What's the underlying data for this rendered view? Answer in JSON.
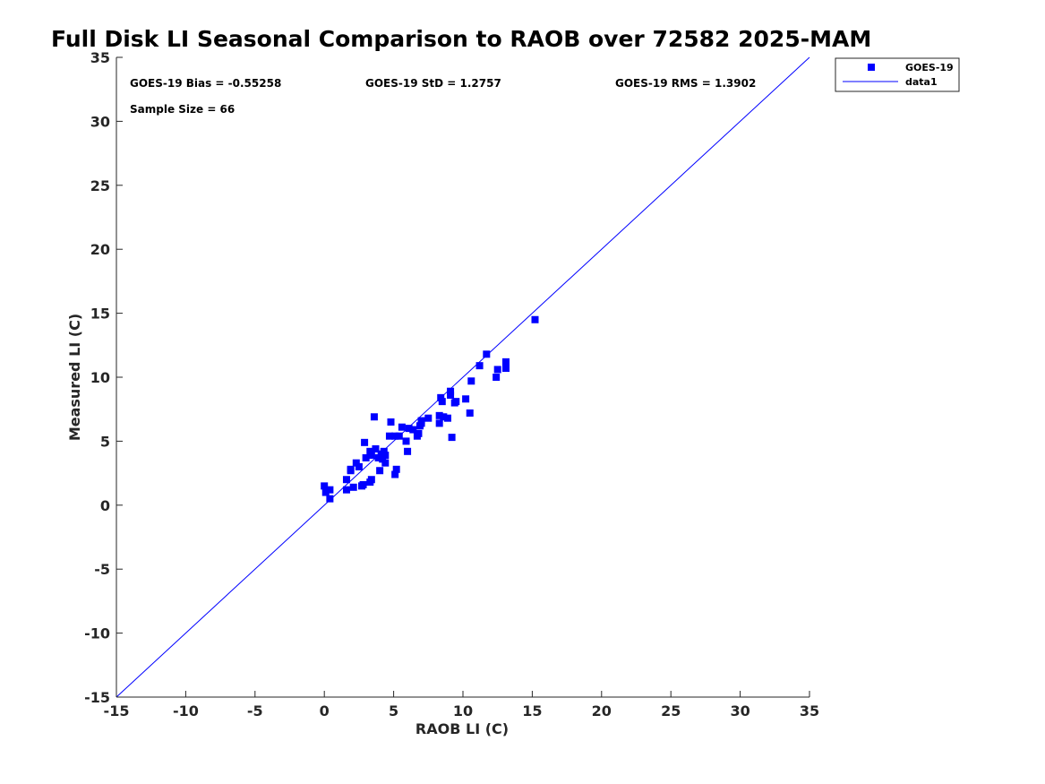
{
  "chart_data": {
    "type": "scatter",
    "title": "Full Disk LI Seasonal Comparison to RAOB over 72582 2025-MAM",
    "xlabel": "RAOB LI (C)",
    "ylabel": "Measured LI (C)",
    "xlim": [
      -15,
      35
    ],
    "ylim": [
      -15,
      35
    ],
    "xticks": [
      -15,
      -10,
      -5,
      0,
      5,
      10,
      15,
      20,
      25,
      30,
      35
    ],
    "yticks": [
      -15,
      -10,
      -5,
      0,
      5,
      10,
      15,
      20,
      25,
      30,
      35
    ],
    "grid": false,
    "legend_position": "top-right outside",
    "annotations": {
      "bias": "GOES-19 Bias = -0.55258",
      "std": "GOES-19 StD = 1.2757",
      "rms": "GOES-19 RMS = 1.3902",
      "sample_size": "Sample Size = 66"
    },
    "series": [
      {
        "name": "GOES-19",
        "kind": "scatter",
        "marker": "square",
        "color": "#0000ff",
        "points": [
          [
            0.0,
            1.5
          ],
          [
            0.1,
            1.0
          ],
          [
            0.4,
            1.2
          ],
          [
            0.4,
            0.5
          ],
          [
            1.6,
            1.2
          ],
          [
            1.6,
            2.0
          ],
          [
            1.9,
            2.8
          ],
          [
            2.1,
            1.4
          ],
          [
            2.3,
            3.3
          ],
          [
            2.5,
            3.0
          ],
          [
            2.7,
            1.5
          ],
          [
            2.8,
            1.6
          ],
          [
            2.9,
            4.9
          ],
          [
            3.0,
            3.7
          ],
          [
            3.3,
            1.8
          ],
          [
            3.3,
            4.2
          ],
          [
            3.4,
            2.0
          ],
          [
            3.4,
            3.9
          ],
          [
            3.6,
            6.9
          ],
          [
            3.7,
            4.4
          ],
          [
            3.9,
            3.7
          ],
          [
            4.0,
            2.7
          ],
          [
            4.2,
            3.6
          ],
          [
            4.3,
            4.2
          ],
          [
            4.4,
            3.9
          ],
          [
            4.4,
            3.3
          ],
          [
            4.7,
            5.4
          ],
          [
            4.8,
            6.5
          ],
          [
            5.1,
            2.4
          ],
          [
            5.2,
            2.8
          ],
          [
            5.1,
            5.4
          ],
          [
            5.4,
            5.4
          ],
          [
            5.6,
            6.1
          ],
          [
            5.9,
            5.0
          ],
          [
            6.0,
            4.2
          ],
          [
            6.1,
            6.0
          ],
          [
            6.4,
            5.9
          ],
          [
            6.7,
            5.4
          ],
          [
            6.8,
            5.6
          ],
          [
            6.9,
            6.2
          ],
          [
            7.0,
            6.4
          ],
          [
            7.0,
            6.6
          ],
          [
            7.5,
            6.8
          ],
          [
            8.3,
            6.4
          ],
          [
            8.3,
            7.0
          ],
          [
            8.4,
            8.4
          ],
          [
            8.5,
            8.1
          ],
          [
            8.6,
            6.9
          ],
          [
            8.9,
            6.8
          ],
          [
            9.1,
            8.6
          ],
          [
            9.1,
            8.9
          ],
          [
            9.2,
            5.3
          ],
          [
            9.4,
            8.0
          ],
          [
            9.5,
            8.1
          ],
          [
            10.2,
            8.3
          ],
          [
            10.5,
            7.2
          ],
          [
            10.6,
            9.7
          ],
          [
            11.2,
            10.9
          ],
          [
            11.7,
            11.8
          ],
          [
            12.4,
            10.0
          ],
          [
            12.5,
            10.6
          ],
          [
            13.1,
            11.2
          ],
          [
            13.1,
            10.7
          ],
          [
            15.2,
            14.5
          ],
          [
            1.9,
            2.7
          ],
          [
            4.1,
            4.0
          ]
        ]
      },
      {
        "name": "data1",
        "kind": "line",
        "color": "#0000ff",
        "points": [
          [
            -15,
            -15
          ],
          [
            35,
            35
          ]
        ]
      }
    ]
  }
}
